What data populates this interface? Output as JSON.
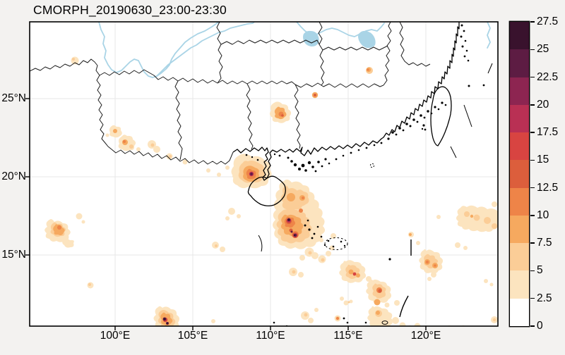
{
  "title": "CMORPH_20190630_23:00-23:30",
  "axes": {
    "x_ticks": [
      {
        "label": "100°E",
        "lon": 100
      },
      {
        "label": "105°E",
        "lon": 105
      },
      {
        "label": "110°E",
        "lon": 110
      },
      {
        "label": "115°E",
        "lon": 115
      },
      {
        "label": "120°E",
        "lon": 120
      }
    ],
    "y_ticks": [
      {
        "label": "25°N",
        "lat": 25
      },
      {
        "label": "20°N",
        "lat": 20
      },
      {
        "label": "15°N",
        "lat": 15
      }
    ]
  },
  "colorbar": {
    "segment_colors_bottom_to_top": [
      "#ffffff",
      "#fce4bf",
      "#fbcd97",
      "#f6a95f",
      "#ee8448",
      "#dc5e3c",
      "#d84441",
      "#b93054",
      "#8d2551",
      "#5d1c43",
      "#39122d"
    ],
    "ticks": [
      {
        "label": "0",
        "value": 0
      },
      {
        "label": "2.5",
        "value": 2.5
      },
      {
        "label": "5",
        "value": 5
      },
      {
        "label": "7.5",
        "value": 7.5
      },
      {
        "label": "10",
        "value": 10
      },
      {
        "label": "12.5",
        "value": 12.5
      },
      {
        "label": "15",
        "value": 15
      },
      {
        "label": "17.5",
        "value": 17.5
      },
      {
        "label": "20",
        "value": 20
      },
      {
        "label": "22.5",
        "value": 22.5
      },
      {
        "label": "25",
        "value": 25
      },
      {
        "label": "27.5",
        "value": 27.5
      }
    ]
  },
  "chart_data": {
    "type": "heatmap",
    "title": "CMORPH_20190630_23:00-23:30",
    "product": "CMORPH",
    "date": "20190630",
    "time_window": "23:00-23:30",
    "extent": {
      "lon_min": 94.5,
      "lon_max": 124.6,
      "lat_min": 10.5,
      "lat_max": 30.0
    },
    "grid": true,
    "xlabel": "",
    "ylabel": "",
    "colorbar_levels": [
      0,
      2.5,
      5,
      7.5,
      10,
      12.5,
      15,
      17.5,
      20,
      22.5,
      25,
      27.5
    ],
    "colorbar_colors": [
      "#ffffff",
      "#fce4bf",
      "#fbcd97",
      "#f6a95f",
      "#ee8448",
      "#dc5e3c",
      "#d84441",
      "#b93054",
      "#8d2551",
      "#5d1c43",
      "#39122d"
    ],
    "map_colors": {
      "water": "#a9d4e6",
      "boundary": "#1c1c1c",
      "grid": "#e7e7e7",
      "plot_background": "#ffffff",
      "figure_background": "#f3f2f0"
    },
    "features": [
      {
        "id": "cell-leizhou-nw-hainan",
        "lon": 108.8,
        "lat": 20.2,
        "max": 20
      },
      {
        "id": "cell-se-hainan-core1",
        "lon": 111.2,
        "lat": 17.3,
        "max": 27
      },
      {
        "id": "cell-se-hainan-core2",
        "lon": 111.6,
        "lat": 16.3,
        "max": 27
      },
      {
        "id": "cell-guangxi-north",
        "lon": 110.6,
        "lat": 23.9,
        "max": 14
      },
      {
        "id": "cell-nguangdong-dot",
        "lon": 112.9,
        "lat": 25.2,
        "max": 14
      },
      {
        "id": "cell-wfujian-dot",
        "lon": 116.4,
        "lat": 26.8,
        "max": 11
      },
      {
        "id": "cell-far-west-cluster",
        "lon": 100.6,
        "lat": 22.3,
        "max": 9
      },
      {
        "id": "cell-west-16n",
        "lon": 96.4,
        "lat": 16.8,
        "max": 12
      },
      {
        "id": "cell-south-11n",
        "lon": 103.2,
        "lat": 10.9,
        "max": 26
      },
      {
        "id": "cell-154e-138n",
        "lon": 115.4,
        "lat": 13.8,
        "max": 16
      },
      {
        "id": "cell-117e-127n",
        "lon": 117.0,
        "lat": 12.7,
        "max": 13
      },
      {
        "id": "cell-120e-145n",
        "lon": 120.3,
        "lat": 14.5,
        "max": 11
      },
      {
        "id": "cell-123e-173n",
        "lon": 123.3,
        "lat": 17.3,
        "max": 6
      }
    ]
  }
}
